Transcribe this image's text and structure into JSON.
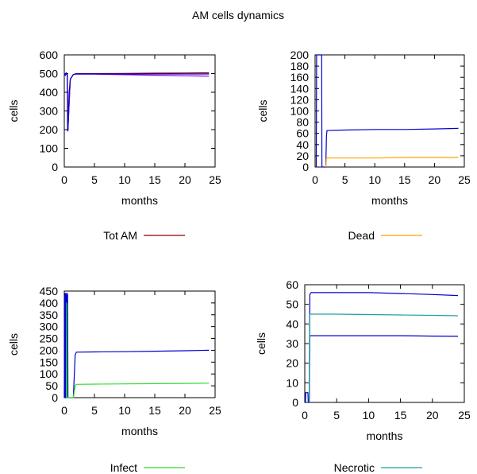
{
  "title": "AM cells  dynamics",
  "chart_data": [
    {
      "type": "line",
      "xlabel": "months",
      "ylabel": "cells",
      "xlim": [
        0,
        25
      ],
      "ylim": [
        0,
        600
      ],
      "xticks": [
        0,
        5,
        10,
        15,
        20,
        25
      ],
      "yticks": [
        0,
        100,
        200,
        300,
        400,
        500,
        600
      ],
      "grid": false,
      "legend": {
        "label": "Tot AM",
        "color": "#8b0000",
        "placement": "below"
      },
      "series": [
        {
          "color": "#8b0000",
          "x": [
            0,
            0.5,
            0.6,
            1,
            1.5,
            2,
            5,
            10,
            15,
            20,
            24
          ],
          "y": [
            500,
            495,
            200,
            470,
            495,
            500,
            500,
            501,
            502,
            503,
            504
          ]
        },
        {
          "color": "#9400d3",
          "x": [
            0,
            0.5,
            0.6,
            1,
            1.5,
            2,
            5,
            10,
            15,
            20,
            24
          ],
          "y": [
            500,
            495,
            200,
            470,
            495,
            498,
            497,
            494,
            491,
            488,
            486
          ]
        },
        {
          "color": "#0000cd",
          "x": [
            0,
            0.2,
            0.3,
            0.5,
            0.55,
            0.6,
            0.8,
            1,
            1.5,
            2,
            5,
            10,
            15,
            20,
            24
          ],
          "y": [
            500,
            490,
            505,
            495,
            193,
            193,
            400,
            470,
            495,
            498,
            498,
            498,
            498,
            498,
            498
          ]
        }
      ]
    },
    {
      "type": "line",
      "xlabel": "months",
      "ylabel": "cells",
      "xlim": [
        0,
        25
      ],
      "ylim": [
        0,
        200
      ],
      "xticks": [
        0,
        5,
        10,
        15,
        20,
        25
      ],
      "yticks": [
        0,
        20,
        40,
        60,
        80,
        100,
        120,
        140,
        160,
        180,
        200
      ],
      "grid": false,
      "legend": {
        "label": "Dead",
        "color": "#ffa500",
        "placement": "below"
      },
      "series": [
        {
          "color": "#0000cd",
          "x": [
            0.2,
            0.25,
            1.1,
            1.15,
            1.8,
            1.9,
            2,
            5,
            10,
            15,
            20,
            24
          ],
          "y": [
            0,
            200,
            200,
            0,
            0,
            55,
            65,
            66,
            67,
            67,
            68,
            69
          ]
        },
        {
          "color": "#ffa500",
          "x": [
            1.8,
            1.9,
            2,
            5,
            10,
            15,
            20,
            24
          ],
          "y": [
            0,
            15,
            16,
            16,
            16,
            17,
            17,
            17
          ]
        }
      ]
    },
    {
      "type": "line",
      "xlabel": "months",
      "ylabel": "cells",
      "xlim": [
        0,
        25
      ],
      "ylim": [
        0,
        450
      ],
      "xticks": [
        0,
        5,
        10,
        15,
        20,
        25
      ],
      "yticks": [
        0,
        50,
        100,
        150,
        200,
        250,
        300,
        350,
        400,
        450
      ],
      "grid": false,
      "legend": {
        "label": "Infect",
        "color": "#33dd33",
        "placement": "below"
      },
      "series": [
        {
          "color": "#0000cd",
          "x": [
            0,
            0.05,
            0.1,
            0.15,
            0.2,
            0.25,
            0.3,
            0.35,
            0.4,
            0.45,
            0.5,
            0.55,
            0.6,
            1.5,
            1.8,
            2,
            5,
            10,
            15,
            20,
            24
          ],
          "y": [
            0,
            430,
            0,
            440,
            0,
            440,
            0,
            440,
            0,
            430,
            0,
            440,
            0,
            0,
            180,
            192,
            193,
            194,
            196,
            198,
            200
          ]
        },
        {
          "color": "#33dd33",
          "x": [
            0.35,
            0.4,
            0.45,
            0.5,
            1.5,
            1.8,
            2,
            5,
            10,
            15,
            20,
            24
          ],
          "y": [
            0,
            400,
            0,
            0,
            0,
            50,
            56,
            57,
            58,
            59,
            60,
            61
          ]
        }
      ]
    },
    {
      "type": "line",
      "xlabel": "months",
      "ylabel": "cells",
      "xlim": [
        0,
        25
      ],
      "ylim": [
        0,
        60
      ],
      "xticks": [
        0,
        5,
        10,
        15,
        20,
        25
      ],
      "yticks": [
        0,
        10,
        20,
        30,
        40,
        50,
        60
      ],
      "grid": false,
      "legend": {
        "label": "Necrotic",
        "color": "#20a0a0",
        "placement": "below"
      },
      "series": [
        {
          "color": "#0000cd",
          "x": [
            0.1,
            0.15,
            0.5,
            0.55,
            0.7,
            0.8,
            1,
            2,
            5,
            10,
            15,
            20,
            24
          ],
          "y": [
            0,
            5,
            5,
            0,
            0,
            55,
            56,
            56,
            56,
            56,
            55.5,
            55,
            54.5
          ]
        },
        {
          "color": "#0000cd",
          "x": [
            0.7,
            0.8,
            1,
            2,
            5,
            10,
            15,
            20,
            24
          ],
          "y": [
            0,
            34,
            34,
            34,
            34,
            34,
            34,
            33.8,
            33.7
          ]
        },
        {
          "color": "#20a0a0",
          "x": [
            0.7,
            0.8,
            1,
            2,
            5,
            10,
            15,
            20,
            24
          ],
          "y": [
            0,
            45,
            45,
            45,
            45,
            44.8,
            44.6,
            44.4,
            44.2
          ]
        }
      ]
    }
  ]
}
